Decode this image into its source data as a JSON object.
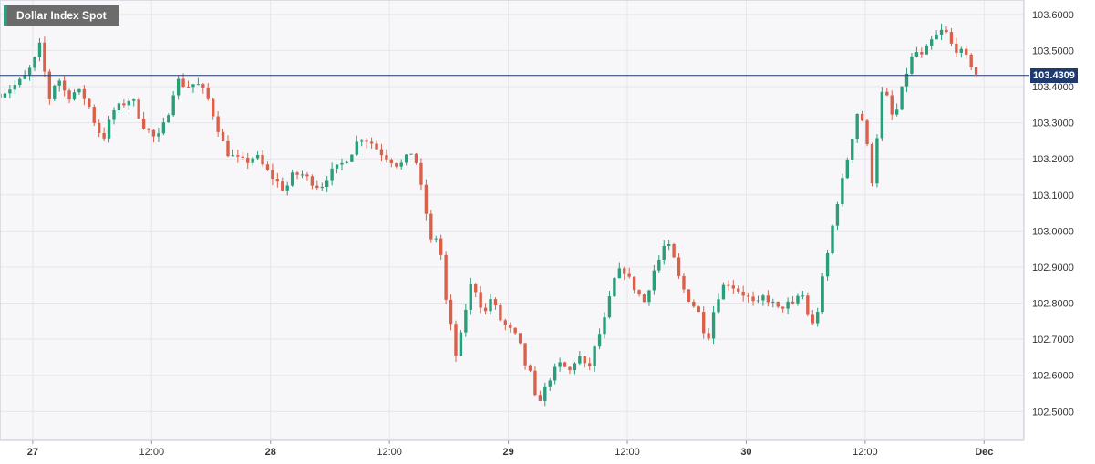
{
  "title": "Dollar Index Spot",
  "current_price_label": "103.4309",
  "colors": {
    "up": "#2a9d7a",
    "down": "#d9604a",
    "price_line": "#1f3a6e",
    "grid": "#e6e6ea",
    "plot_bg": "#f7f7f9",
    "title_bg": "#6b6b6b"
  },
  "chart_data": {
    "type": "candlestick",
    "title": "Dollar Index Spot",
    "ylim": [
      102.42,
      103.64
    ],
    "y_ticks": [
      103.6,
      103.5,
      103.4,
      103.3,
      103.2,
      103.1,
      103.0,
      102.9,
      102.8,
      102.7,
      102.6,
      102.5
    ],
    "y_tick_labels": [
      "103.6000",
      "103.5000",
      "103.4000",
      "103.3000",
      "103.2000",
      "103.1000",
      "103.0000",
      "102.9000",
      "102.8000",
      "102.7000",
      "102.6000",
      "102.5000"
    ],
    "x_ticks": [
      {
        "t": 0,
        "label": "27"
      },
      {
        "t": 12,
        "label": "12:00"
      },
      {
        "t": 24,
        "label": "28"
      },
      {
        "t": 36,
        "label": "12:00"
      },
      {
        "t": 48,
        "label": "29"
      },
      {
        "t": 60,
        "label": "12:00"
      },
      {
        "t": 72,
        "label": "30"
      },
      {
        "t": 84,
        "label": "12:00"
      },
      {
        "t": 96,
        "label": "Dec"
      }
    ],
    "xlim": [
      -3.3,
      99.1
    ],
    "candle_interval_hours": 0.5,
    "first_candle_hour": -3.3,
    "close_anchors": [
      [
        -3.3,
        103.38
      ],
      [
        -2.0,
        103.4
      ],
      [
        -1.0,
        103.42
      ],
      [
        0.0,
        103.46
      ],
      [
        0.8,
        103.52
      ],
      [
        1.6,
        103.36
      ],
      [
        2.5,
        103.43
      ],
      [
        3.5,
        103.37
      ],
      [
        4.5,
        103.39
      ],
      [
        5.5,
        103.36
      ],
      [
        6.5,
        103.28
      ],
      [
        7.3,
        103.26
      ],
      [
        8.0,
        103.33
      ],
      [
        9.0,
        103.35
      ],
      [
        10.0,
        103.37
      ],
      [
        11.0,
        103.3
      ],
      [
        12.5,
        103.25
      ],
      [
        13.5,
        103.31
      ],
      [
        14.5,
        103.42
      ],
      [
        15.5,
        103.4
      ],
      [
        16.5,
        103.41
      ],
      [
        17.5,
        103.38
      ],
      [
        18.5,
        103.3
      ],
      [
        19.5,
        103.22
      ],
      [
        20.5,
        103.2
      ],
      [
        21.5,
        103.19
      ],
      [
        22.5,
        103.21
      ],
      [
        23.5,
        103.17
      ],
      [
        24.5,
        103.14
      ],
      [
        25.5,
        103.11
      ],
      [
        26.0,
        103.15
      ],
      [
        27.0,
        103.16
      ],
      [
        28.0,
        103.14
      ],
      [
        29.0,
        103.12
      ],
      [
        30.0,
        103.16
      ],
      [
        31.0,
        103.18
      ],
      [
        32.0,
        103.21
      ],
      [
        33.0,
        103.26
      ],
      [
        34.0,
        103.25
      ],
      [
        35.0,
        103.22
      ],
      [
        36.0,
        103.2
      ],
      [
        37.0,
        103.18
      ],
      [
        38.0,
        103.21
      ],
      [
        38.5,
        103.23
      ],
      [
        38.8,
        103.17
      ],
      [
        39.5,
        103.08
      ],
      [
        40.2,
        102.97
      ],
      [
        41.0,
        102.99
      ],
      [
        41.6,
        102.82
      ],
      [
        42.3,
        102.72
      ],
      [
        42.8,
        102.64
      ],
      [
        43.5,
        102.76
      ],
      [
        44.3,
        102.86
      ],
      [
        45.0,
        102.82
      ],
      [
        45.5,
        102.76
      ],
      [
        46.3,
        102.82
      ],
      [
        47.0,
        102.76
      ],
      [
        48.0,
        102.73
      ],
      [
        49.0,
        102.7
      ],
      [
        49.8,
        102.62
      ],
      [
        50.3,
        102.6
      ],
      [
        50.8,
        102.52
      ],
      [
        51.5,
        102.55
      ],
      [
        52.3,
        102.6
      ],
      [
        53.2,
        102.63
      ],
      [
        54.3,
        102.61
      ],
      [
        55.0,
        102.66
      ],
      [
        56.0,
        102.61
      ],
      [
        57.0,
        102.7
      ],
      [
        57.8,
        102.76
      ],
      [
        58.6,
        102.86
      ],
      [
        59.5,
        102.9
      ],
      [
        60.3,
        102.86
      ],
      [
        61.0,
        102.83
      ],
      [
        61.8,
        102.8
      ],
      [
        62.5,
        102.88
      ],
      [
        63.2,
        102.92
      ],
      [
        63.9,
        102.97
      ],
      [
        64.6,
        102.93
      ],
      [
        65.3,
        102.86
      ],
      [
        66.0,
        102.82
      ],
      [
        66.8,
        102.79
      ],
      [
        67.5,
        102.76
      ],
      [
        68.0,
        102.68
      ],
      [
        68.5,
        102.76
      ],
      [
        69.3,
        102.83
      ],
      [
        70.0,
        102.86
      ],
      [
        71.0,
        102.84
      ],
      [
        72.0,
        102.82
      ],
      [
        73.0,
        102.79
      ],
      [
        73.8,
        102.82
      ],
      [
        74.6,
        102.8
      ],
      [
        75.3,
        102.78
      ],
      [
        76.0,
        102.8
      ],
      [
        76.8,
        102.79
      ],
      [
        77.5,
        102.84
      ],
      [
        78.3,
        102.76
      ],
      [
        78.9,
        102.73
      ],
      [
        79.6,
        102.85
      ],
      [
        80.3,
        102.95
      ],
      [
        81.0,
        103.06
      ],
      [
        81.8,
        103.15
      ],
      [
        82.6,
        103.25
      ],
      [
        83.3,
        103.34
      ],
      [
        83.8,
        103.3
      ],
      [
        84.4,
        103.2
      ],
      [
        84.8,
        103.12
      ],
      [
        85.3,
        103.3
      ],
      [
        85.8,
        103.4
      ],
      [
        86.3,
        103.36
      ],
      [
        86.9,
        103.3
      ],
      [
        87.6,
        103.38
      ],
      [
        88.3,
        103.45
      ],
      [
        89.0,
        103.5
      ],
      [
        89.8,
        103.48
      ],
      [
        90.5,
        103.52
      ],
      [
        91.2,
        103.54
      ],
      [
        92.0,
        103.56
      ],
      [
        92.8,
        103.51
      ],
      [
        93.5,
        103.5
      ],
      [
        94.5,
        103.47
      ],
      [
        95.3,
        103.43
      ]
    ]
  }
}
